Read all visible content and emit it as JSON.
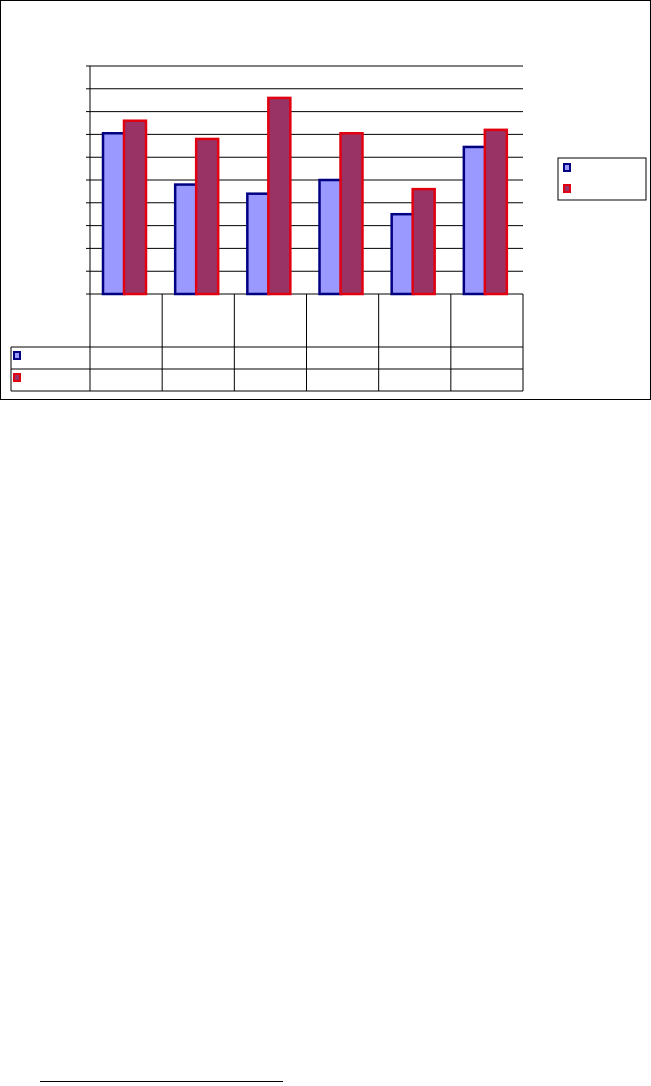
{
  "chart_data": {
    "type": "bar",
    "title": "",
    "xlabel": "",
    "ylabel": "",
    "categories": [
      "",
      "",
      "",
      "",
      "",
      ""
    ],
    "series": [
      {
        "values": [
          7.05,
          4.8,
          4.4,
          5.0,
          3.5,
          6.45
        ],
        "fill": "#9999ff",
        "stroke": "#000080"
      },
      {
        "values": [
          7.6,
          6.8,
          8.6,
          7.05,
          4.6,
          7.2
        ],
        "fill": "#993366",
        "stroke": "#e00010"
      }
    ],
    "ylim": [
      0,
      10
    ],
    "grid": true,
    "legend": "right",
    "data_table": true
  }
}
